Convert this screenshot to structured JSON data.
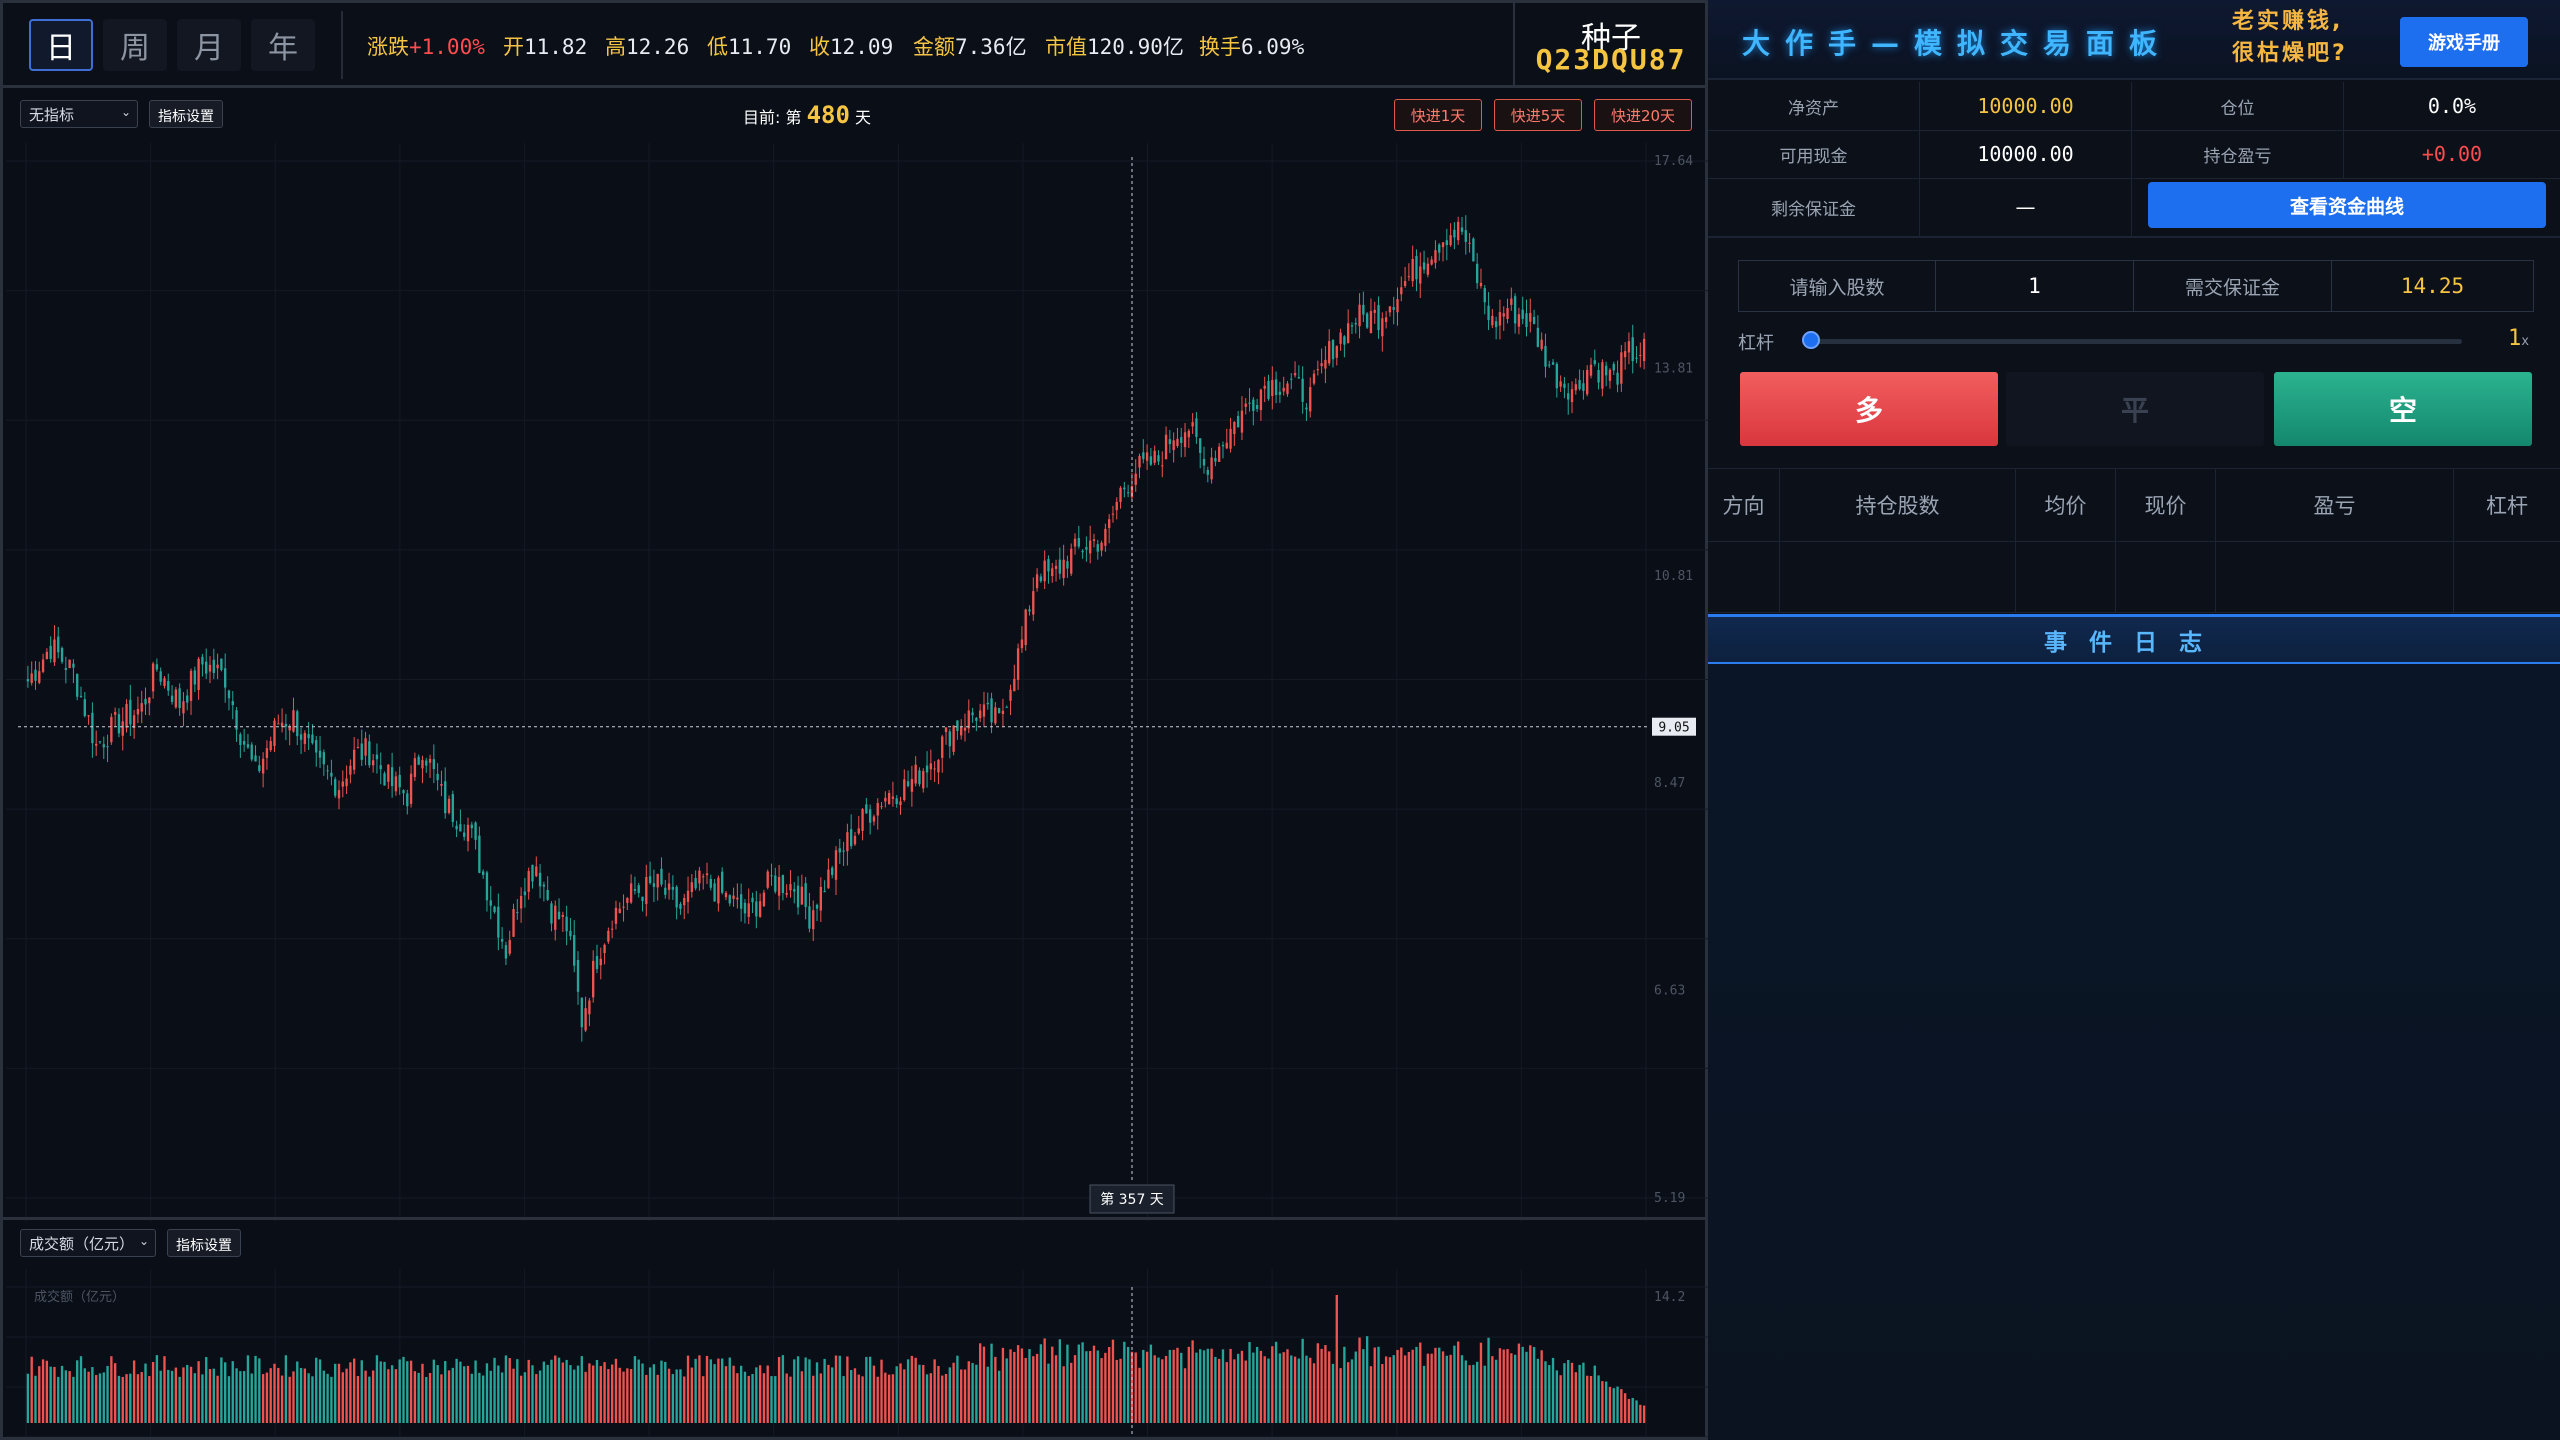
{
  "periods": [
    {
      "label": "日",
      "active": true
    },
    {
      "label": "周",
      "active": false
    },
    {
      "label": "月",
      "active": false
    },
    {
      "label": "年",
      "active": false
    }
  ],
  "stats": {
    "change_label": "涨跌",
    "change_value": "+1.00%",
    "open_label": "开",
    "open_value": "11.82",
    "high_label": "高",
    "high_value": "12.26",
    "low_label": "低",
    "low_value": "11.70",
    "close_label": "收",
    "close_value": "12.09",
    "amount_label": "金额",
    "amount_value": "7.36亿",
    "mktcap_label": "市值",
    "mktcap_value": "120.90亿",
    "turnover_label": "换手",
    "turnover_value": "6.09%"
  },
  "seed": {
    "label": "种子",
    "code": "Q23DQU87"
  },
  "chart_toolbar": {
    "indicator_select": "无指标",
    "indicator_settings": "指标设置",
    "day_prefix": "目前: 第",
    "day_number": "480",
    "day_suffix": "天",
    "ff1": "快进1天",
    "ff5": "快进5天",
    "ff20": "快进20天"
  },
  "chart_data": {
    "type": "candlestick",
    "y_ticks": [
      "17.64",
      "13.81",
      "10.81",
      "8.47",
      "6.63",
      "5.19"
    ],
    "crosshair_price": "9.05",
    "crosshair_day": "第 357 天",
    "colors": {
      "up": "#ef5350",
      "down": "#26a69a"
    },
    "anchors": [
      [
        0,
        9.55
      ],
      [
        6,
        9.95
      ],
      [
        12,
        9.65
      ],
      [
        18,
        8.85
      ],
      [
        24,
        9.1
      ],
      [
        30,
        9.25
      ],
      [
        34,
        9.7
      ],
      [
        40,
        9.3
      ],
      [
        46,
        9.75
      ],
      [
        52,
        9.6
      ],
      [
        56,
        9.0
      ],
      [
        60,
        8.55
      ],
      [
        66,
        9.1
      ],
      [
        70,
        9.15
      ],
      [
        76,
        8.65
      ],
      [
        82,
        8.45
      ],
      [
        86,
        8.75
      ],
      [
        90,
        8.8
      ],
      [
        96,
        8.45
      ],
      [
        100,
        8.35
      ],
      [
        104,
        8.85
      ],
      [
        110,
        8.25
      ],
      [
        116,
        8.05
      ],
      [
        120,
        7.6
      ],
      [
        126,
        6.95
      ],
      [
        130,
        7.5
      ],
      [
        134,
        7.7
      ],
      [
        138,
        7.3
      ],
      [
        142,
        7.15
      ],
      [
        146,
        6.4
      ],
      [
        150,
        6.9
      ],
      [
        154,
        7.25
      ],
      [
        160,
        7.45
      ],
      [
        166,
        7.5
      ],
      [
        172,
        7.3
      ],
      [
        178,
        7.55
      ],
      [
        184,
        7.4
      ],
      [
        190,
        7.25
      ],
      [
        196,
        7.55
      ],
      [
        202,
        7.5
      ],
      [
        206,
        7.25
      ],
      [
        212,
        7.65
      ],
      [
        216,
        7.9
      ],
      [
        222,
        8.2
      ],
      [
        226,
        8.35
      ],
      [
        232,
        8.45
      ],
      [
        238,
        8.7
      ],
      [
        244,
        9.05
      ],
      [
        250,
        9.2
      ],
      [
        256,
        9.1
      ],
      [
        262,
        10.0
      ],
      [
        266,
        10.9
      ],
      [
        270,
        10.8
      ],
      [
        274,
        11.05
      ],
      [
        280,
        11.25
      ],
      [
        284,
        11.3
      ],
      [
        288,
        11.95
      ],
      [
        292,
        12.25
      ],
      [
        298,
        12.4
      ],
      [
        302,
        12.8
      ],
      [
        306,
        12.9
      ],
      [
        310,
        12.3
      ],
      [
        314,
        12.6
      ],
      [
        320,
        13.1
      ],
      [
        326,
        13.55
      ],
      [
        332,
        13.6
      ],
      [
        338,
        13.35
      ],
      [
        344,
        14.2
      ],
      [
        350,
        14.65
      ],
      [
        356,
        14.7
      ],
      [
        362,
        15.2
      ],
      [
        368,
        15.75
      ],
      [
        374,
        16.2
      ],
      [
        378,
        16.25
      ],
      [
        382,
        15.35
      ],
      [
        386,
        14.55
      ],
      [
        390,
        14.85
      ],
      [
        396,
        14.6
      ],
      [
        402,
        13.75
      ],
      [
        408,
        13.45
      ],
      [
        412,
        13.9
      ],
      [
        418,
        13.65
      ],
      [
        422,
        14.05
      ],
      [
        426,
        14.1
      ]
    ],
    "n_days": 427,
    "volume": {
      "label": "成交额（亿元）",
      "y_tick": "14.2"
    }
  },
  "volume_toolbar": {
    "select": "成交额（亿元）",
    "settings": "指标设置"
  },
  "panel": {
    "title": "大作手—模拟交易面板",
    "slogan1": "老实赚钱,",
    "slogan2": "很枯燥吧?",
    "manual": "游戏手册",
    "net_assets_label": "净资产",
    "net_assets_value": "10000.00",
    "position_label": "仓位",
    "position_value": "0.0%",
    "cash_label": "可用现金",
    "cash_value": "10000.00",
    "pnl_label": "持仓盈亏",
    "pnl_value": "+0.00",
    "margin_left_label": "剩余保证金",
    "margin_left_value": "—",
    "curve_button": "查看资金曲线",
    "shares_label": "请输入股数",
    "shares_value": "1",
    "margin_req_label": "需交保证金",
    "margin_req_value": "14.25",
    "leverage_label": "杠杆",
    "leverage_value": "1",
    "leverage_unit": "x",
    "long_label": "多",
    "flat_label": "平",
    "short_label": "空",
    "pos_headers": [
      "方向",
      "持仓股数",
      "均价",
      "现价",
      "盈亏",
      "杠杆"
    ],
    "log_title": "事件日志"
  }
}
